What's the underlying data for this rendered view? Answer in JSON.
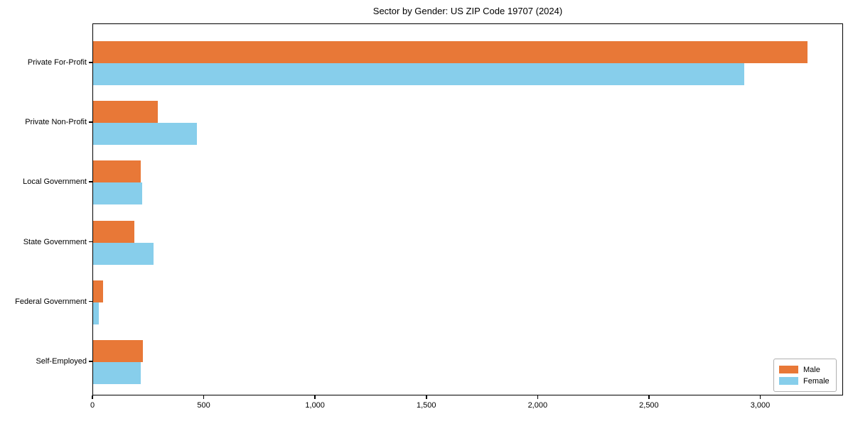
{
  "chart_data": {
    "type": "bar",
    "orientation": "horizontal",
    "title": "Sector by Gender: US ZIP Code 19707 (2024)",
    "categories": [
      "Private For-Profit",
      "Private Non-Profit",
      "Local Government",
      "State Government",
      "Federal Government",
      "Self-Employed"
    ],
    "series": [
      {
        "name": "Male",
        "color": "#E87837",
        "values": [
          3210,
          290,
          215,
          185,
          45,
          225
        ]
      },
      {
        "name": "Female",
        "color": "#87CEEB",
        "values": [
          2925,
          465,
          220,
          270,
          25,
          215
        ]
      }
    ],
    "xlabel": "",
    "ylabel": "",
    "xlim": [
      0,
      3372
    ],
    "x_ticks": [
      0,
      500,
      1000,
      1500,
      2000,
      2500,
      3000
    ],
    "grid": false,
    "legend_position": "lower right"
  }
}
